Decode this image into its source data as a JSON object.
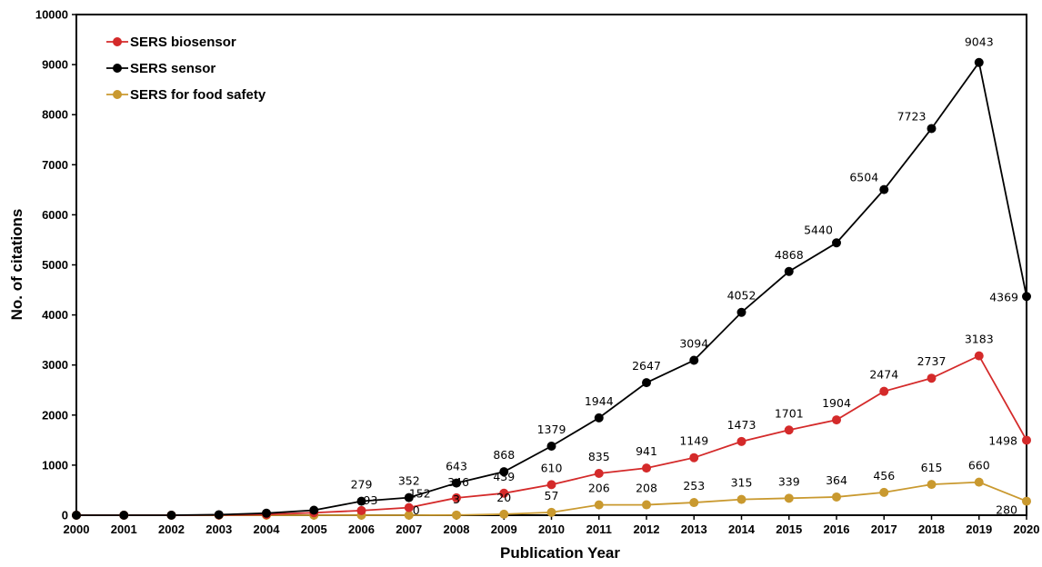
{
  "chart_data": {
    "type": "line",
    "xlabel": "Publication Year",
    "ylabel": "No. of citations",
    "ylim": [
      0,
      10000
    ],
    "yticks": [
      0,
      1000,
      2000,
      3000,
      4000,
      5000,
      6000,
      7000,
      8000,
      9000,
      10000
    ],
    "categories": [
      "2000",
      "2001",
      "2002",
      "2003",
      "2004",
      "2005",
      "2006",
      "2007",
      "2008",
      "2009",
      "2010",
      "2011",
      "2012",
      "2013",
      "2014",
      "2015",
      "2016",
      "2017",
      "2018",
      "2019",
      "2020"
    ],
    "grid": false,
    "legend_position": "top-left",
    "series": [
      {
        "name": "SERS biosensor",
        "color": "#d42a2a",
        "values": [
          0,
          0,
          0,
          5,
          15,
          50,
          93,
          152,
          346,
          439,
          610,
          835,
          941,
          1149,
          1473,
          1701,
          1904,
          2474,
          2737,
          3183,
          1498
        ],
        "labels": [
          "",
          "",
          "",
          "",
          "",
          "",
          "93",
          "152",
          "346",
          "439",
          "610",
          "835",
          "941",
          "1149",
          "1473",
          "1701",
          "1904",
          "2474",
          "2737",
          "3183",
          "1498"
        ]
      },
      {
        "name": "SERS sensor",
        "color": "#000000",
        "values": [
          0,
          0,
          0,
          10,
          40,
          100,
          279,
          352,
          643,
          868,
          1379,
          1944,
          2647,
          3094,
          4052,
          4868,
          5440,
          6504,
          7723,
          9043,
          4369
        ],
        "labels": [
          "",
          "",
          "",
          "",
          "",
          "",
          "279",
          "352",
          "643",
          "868",
          "1379",
          "1944",
          "2647",
          "3094",
          "4052",
          "4868",
          "5440",
          "6504",
          "7723",
          "9043",
          "4369"
        ]
      },
      {
        "name": "SERS for food safety",
        "color": "#c9992f",
        "values": [
          0,
          0,
          0,
          0,
          0,
          0,
          0,
          0,
          3,
          20,
          57,
          206,
          208,
          253,
          315,
          339,
          364,
          456,
          615,
          660,
          280
        ],
        "labels": [
          "",
          "",
          "",
          "",
          "",
          "",
          "",
          "0",
          "3",
          "20",
          "57",
          "206",
          "208",
          "253",
          "315",
          "339",
          "364",
          "456",
          "615",
          "660",
          "280"
        ]
      }
    ]
  }
}
